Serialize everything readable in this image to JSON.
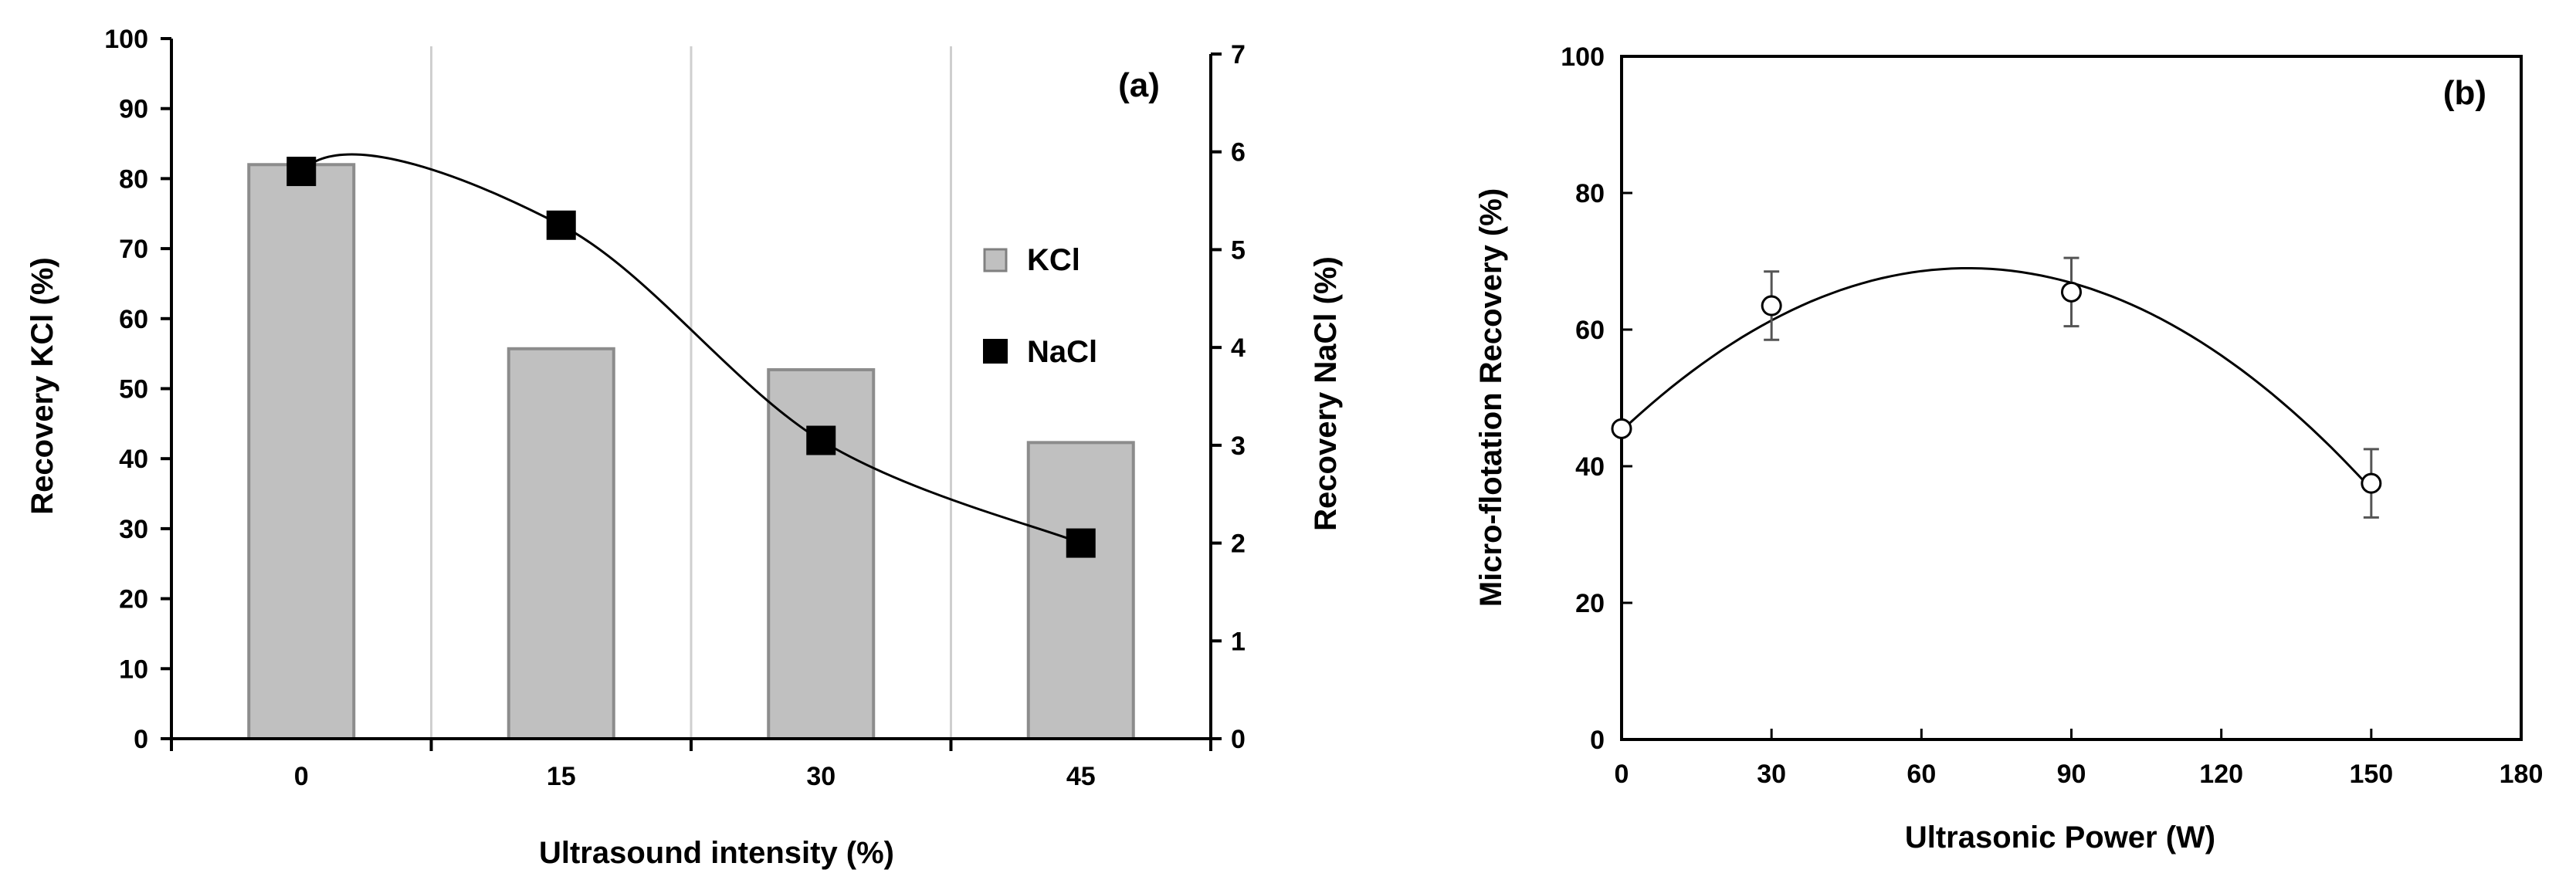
{
  "chart_data": [
    {
      "panel": "(a)",
      "type": "bar",
      "categories": [
        "0",
        "15",
        "30",
        "45"
      ],
      "series": [
        {
          "name": "KCl",
          "kind": "bar",
          "axis": "left",
          "values": [
            82,
            55.7,
            52.7,
            42.3
          ],
          "color": "#c0c0c0"
        },
        {
          "name": "NaCl",
          "kind": "line-markers",
          "axis": "right",
          "values": [
            5.8,
            5.25,
            3.05,
            2.0
          ],
          "color": "#000000"
        }
      ],
      "xlabel": "Ultrasound intensity (%)",
      "ylabel": "Recovery KCl (%)",
      "ylabel_right": "Recovery NaCl (%)",
      "ylim": [
        0,
        100
      ],
      "yticks": [
        "0",
        "10",
        "20",
        "30",
        "40",
        "50",
        "60",
        "70",
        "80",
        "90",
        "100"
      ],
      "ylim_right": [
        0,
        7
      ],
      "yticks_right": [
        "0",
        "1",
        "2",
        "3",
        "4",
        "5",
        "6",
        "7"
      ],
      "legend": [
        {
          "label": "KCl"
        },
        {
          "label": "NaCl"
        }
      ]
    },
    {
      "panel": "(b)",
      "type": "scatter",
      "series": [
        {
          "name": "Micro-flotation Recovery",
          "x": [
            0,
            30,
            90,
            150
          ],
          "y": [
            45.5,
            63.5,
            65.5,
            37.5
          ],
          "err": [
            0,
            5,
            5,
            5
          ]
        }
      ],
      "fit_curve": {
        "type": "quadratic",
        "coefficients": [
          45.2,
          0.687,
          -0.00496
        ]
      },
      "xlabel": "Ultrasonic Power (W)",
      "ylabel": "Micro-flotation Recovery (%)",
      "xlim": [
        0,
        180
      ],
      "xticks": [
        "0",
        "30",
        "60",
        "90",
        "120",
        "150",
        "180"
      ],
      "ylim": [
        0,
        100
      ],
      "yticks": [
        "0",
        "20",
        "40",
        "60",
        "80",
        "100"
      ]
    }
  ]
}
